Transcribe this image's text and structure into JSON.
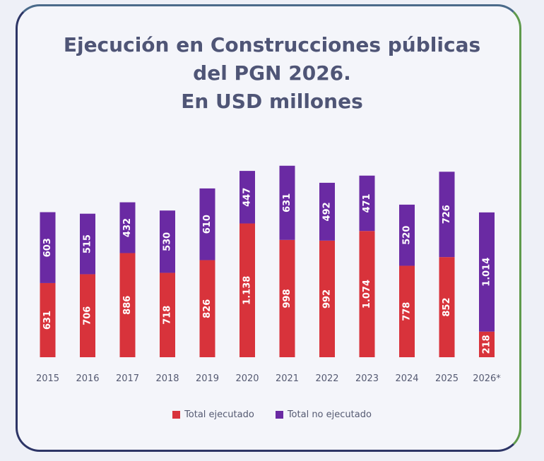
{
  "title_lines": [
    "Ejecución en Construcciones públicas",
    "del PGN 2026.",
    "En USD millones"
  ],
  "colors": {
    "executed": "#d8333b",
    "not_executed": "#6a2aa3",
    "label_text": "#ffffff",
    "axis_text": "#555a72"
  },
  "chart_data": {
    "type": "bar",
    "stacked": true,
    "title": "Ejecución en Construcciones públicas del PGN 2026. En USD millones",
    "categories": [
      "2015",
      "2016",
      "2017",
      "2018",
      "2019",
      "2020",
      "2021",
      "2022",
      "2023",
      "2024",
      "2025",
      "2026*"
    ],
    "series": [
      {
        "name": "Total ejecutado",
        "values": [
          631,
          706,
          886,
          718,
          826,
          1138,
          998,
          992,
          1074,
          778,
          852,
          218
        ],
        "labels": [
          "631",
          "706",
          "886",
          "718",
          "826",
          "1.138",
          "998",
          "992",
          "1.074",
          "778",
          "852",
          "218"
        ]
      },
      {
        "name": "Total no ejecutado",
        "values": [
          603,
          515,
          432,
          530,
          610,
          447,
          631,
          492,
          471,
          520,
          726,
          1014
        ],
        "labels": [
          "603",
          "515",
          "432",
          "530",
          "610",
          "447",
          "631",
          "492",
          "471",
          "520",
          "726",
          "1.014"
        ]
      }
    ],
    "legend_position": "bottom",
    "grid": false
  }
}
